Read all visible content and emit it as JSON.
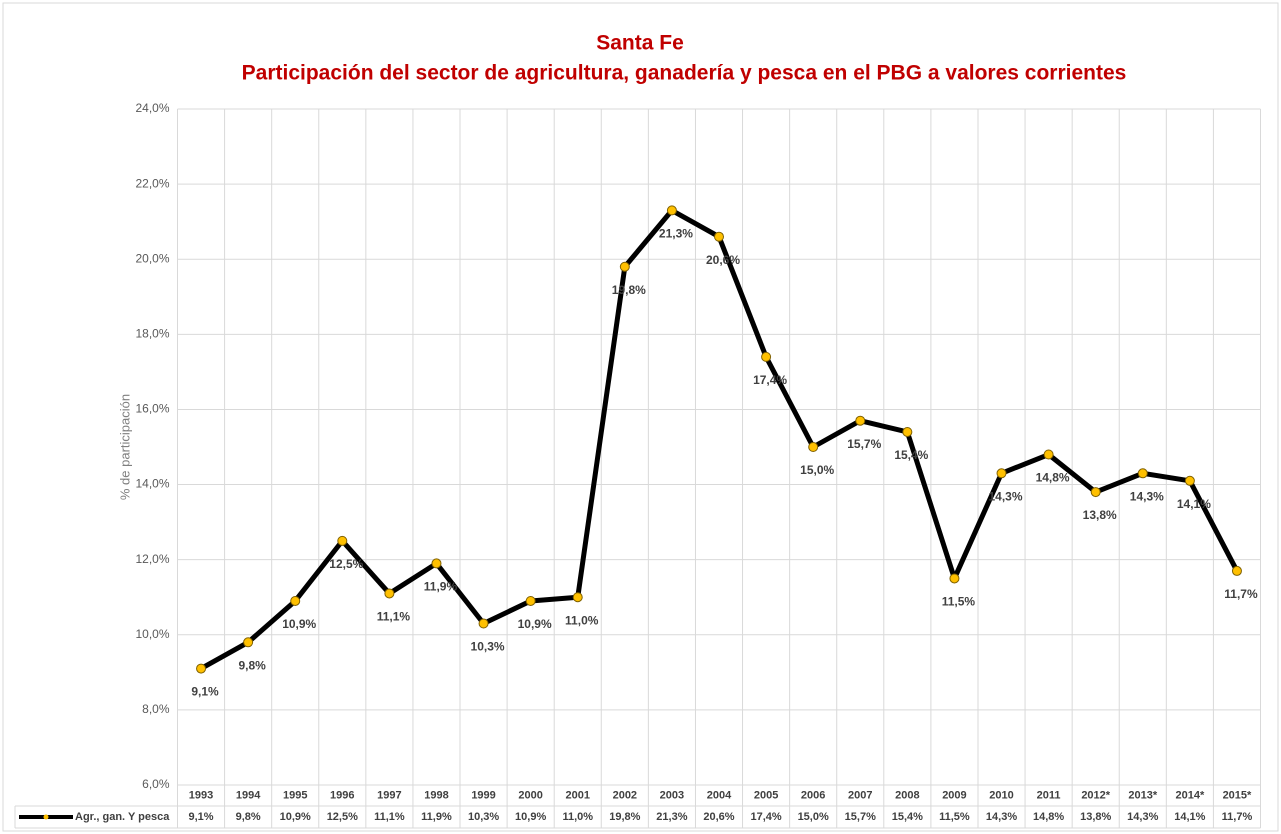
{
  "chart_data": {
    "type": "line",
    "title": "Santa Fe",
    "subtitle": "Participación del sector de agricultura, ganadería y pesca en el PBG a valores corrientes",
    "y_label": "% de participación",
    "categories": [
      "1993",
      "1994",
      "1995",
      "1996",
      "1997",
      "1998",
      "1999",
      "2000",
      "2001",
      "2002",
      "2003",
      "2004",
      "2005",
      "2006",
      "2007",
      "2008",
      "2009",
      "2010",
      "2011",
      "2012*",
      "2013*",
      "2014*",
      "2015*"
    ],
    "series": [
      {
        "name": "Agr., gan. Y pesca",
        "color": "#000000",
        "marker_color": "#ffc000",
        "values": [
          9.1,
          9.8,
          10.9,
          12.5,
          11.1,
          11.9,
          10.3,
          10.9,
          11.0,
          19.8,
          21.3,
          20.6,
          17.4,
          15.0,
          15.7,
          15.4,
          11.5,
          14.3,
          14.8,
          13.8,
          14.3,
          14.1,
          11.7
        ],
        "value_labels": [
          "9,1%",
          "9,8%",
          "10,9%",
          "12,5%",
          "11,1%",
          "11,9%",
          "10,3%",
          "10,9%",
          "11,0%",
          "19,8%",
          "21,3%",
          "20,6%",
          "17,4%",
          "15,0%",
          "15,7%",
          "15,4%",
          "11,5%",
          "14,3%",
          "14,8%",
          "13,8%",
          "14,3%",
          "14,1%",
          "11,7%"
        ]
      }
    ],
    "ylim": [
      6,
      24
    ],
    "yticks": [
      {
        "value": 6,
        "label": "6,0%"
      },
      {
        "value": 8,
        "label": "8,0%"
      },
      {
        "value": 10,
        "label": "10,0%"
      },
      {
        "value": 12,
        "label": "12,0%"
      },
      {
        "value": 14,
        "label": "14,0%"
      },
      {
        "value": 16,
        "label": "16,0%"
      },
      {
        "value": 18,
        "label": "18,0%"
      },
      {
        "value": 20,
        "label": "20,0%"
      },
      {
        "value": 22,
        "label": "22,0%"
      },
      {
        "value": 24,
        "label": "24,0%"
      }
    ],
    "grid": true,
    "data_table": true
  }
}
